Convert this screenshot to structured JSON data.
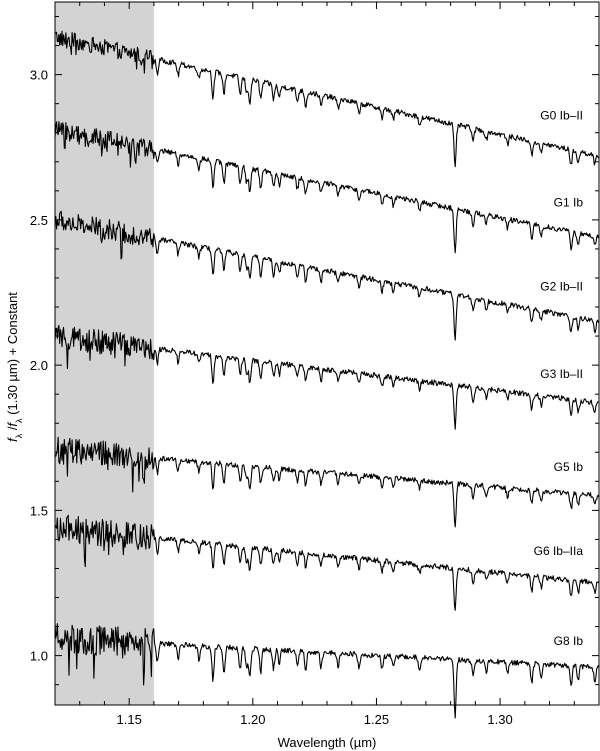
{
  "chart_data": {
    "type": "line",
    "xlabel": "Wavelength (µm)",
    "ylabel": {
      "f1": "f",
      "sub1": "λ",
      "slash": " /",
      "f2": "f",
      "sub2": "λ",
      "rest": " (1.30 µm) + Constant"
    },
    "xlim": [
      1.12,
      1.34
    ],
    "ylim": [
      0.83,
      3.25
    ],
    "xticks": [
      {
        "value": 1.15,
        "label": "1.15"
      },
      {
        "value": 1.2,
        "label": "1.20"
      },
      {
        "value": 1.25,
        "label": "1.25"
      },
      {
        "value": 1.3,
        "label": "1.30"
      }
    ],
    "yticks": [
      {
        "value": 1.0,
        "label": "1.0"
      },
      {
        "value": 1.5,
        "label": "1.5"
      },
      {
        "value": 2.0,
        "label": "2.0"
      },
      {
        "value": 2.5,
        "label": "2.5"
      },
      {
        "value": 3.0,
        "label": "3.0"
      }
    ],
    "shaded_region": {
      "x": [
        1.12,
        1.16
      ],
      "color": "#d3d3d3"
    },
    "line_color": "#000000",
    "series": [
      {
        "name": "G0 Ib–II",
        "start": 3.13,
        "end": 2.72,
        "label_y": 2.86
      },
      {
        "name": "G1 Ib",
        "start": 2.81,
        "end": 2.44,
        "label_y": 2.56
      },
      {
        "name": "G2 Ib–II",
        "start": 2.5,
        "end": 2.15,
        "label_y": 2.27
      },
      {
        "name": "G3 Ib–II",
        "start": 2.1,
        "end": 1.87,
        "label_y": 1.97
      },
      {
        "name": "G5 Ib",
        "start": 1.71,
        "end": 1.55,
        "label_y": 1.65
      },
      {
        "name": "G6 Ib–IIa",
        "start": 1.44,
        "end": 1.25,
        "label_y": 1.36
      },
      {
        "name": "G8 Ib",
        "start": 1.06,
        "end": 0.96,
        "label_y": 1.05
      }
    ],
    "absorption_lines": [
      {
        "x": 1.1614,
        "depth": 0.05
      },
      {
        "x": 1.1698,
        "depth": 0.04
      },
      {
        "x": 1.1782,
        "depth": 0.035
      },
      {
        "x": 1.1839,
        "depth": 0.09
      },
      {
        "x": 1.1883,
        "depth": 0.07
      },
      {
        "x": 1.1949,
        "depth": 0.06
      },
      {
        "x": 1.1975,
        "depth": 0.05
      },
      {
        "x": 1.1988,
        "depth": 0.08
      },
      {
        "x": 1.2032,
        "depth": 0.06
      },
      {
        "x": 1.2084,
        "depth": 0.05
      },
      {
        "x": 1.2107,
        "depth": 0.04
      },
      {
        "x": 1.218,
        "depth": 0.04
      },
      {
        "x": 1.2214,
        "depth": 0.05
      },
      {
        "x": 1.2276,
        "depth": 0.04
      },
      {
        "x": 1.2345,
        "depth": 0.035
      },
      {
        "x": 1.2429,
        "depth": 0.035
      },
      {
        "x": 1.2523,
        "depth": 0.035
      },
      {
        "x": 1.2568,
        "depth": 0.03
      },
      {
        "x": 1.2674,
        "depth": 0.03
      },
      {
        "x": 1.2818,
        "depth": 0.15
      },
      {
        "x": 1.2891,
        "depth": 0.045
      },
      {
        "x": 1.2944,
        "depth": 0.03
      },
      {
        "x": 1.303,
        "depth": 0.03
      },
      {
        "x": 1.3128,
        "depth": 0.05
      },
      {
        "x": 1.3166,
        "depth": 0.035
      },
      {
        "x": 1.3287,
        "depth": 0.055
      },
      {
        "x": 1.3316,
        "depth": 0.04
      },
      {
        "x": 1.3383,
        "depth": 0.035
      }
    ]
  }
}
